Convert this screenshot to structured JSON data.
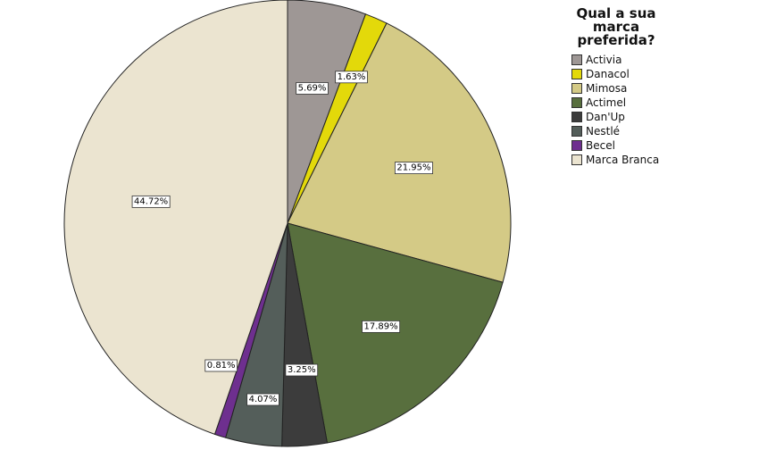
{
  "chart_data": {
    "type": "pie",
    "title_lines": [
      "Qual a sua",
      "marca",
      "preferida?"
    ],
    "legend_position": "right",
    "slices": [
      {
        "name": "Activia",
        "value": 5.69,
        "label": "5.69%",
        "color": "#9e9795"
      },
      {
        "name": "Danacol",
        "value": 1.63,
        "label": "1.63%",
        "color": "#e3d90a"
      },
      {
        "name": "Mimosa",
        "value": 21.95,
        "label": "21.95%",
        "color": "#d4ca86"
      },
      {
        "name": "Actimel",
        "value": 17.89,
        "label": "17.89%",
        "color": "#586f3e"
      },
      {
        "name": "Dan'Up",
        "value": 3.25,
        "label": "3.25%",
        "color": "#3c3c3c"
      },
      {
        "name": "Nestlé",
        "value": 4.07,
        "label": "4.07%",
        "color": "#545e5a"
      },
      {
        "name": "Becel",
        "value": 0.81,
        "label": "0.81%",
        "color": "#6e2f8f"
      },
      {
        "name": "Marca Branca",
        "value": 44.72,
        "label": "44.72%",
        "color": "#ebe4d0"
      }
    ]
  }
}
